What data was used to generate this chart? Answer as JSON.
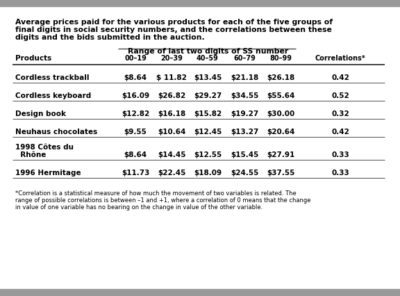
{
  "title_line1": "Average prices paid for the various products for each of the five groups of",
  "title_line2": "final digits in social security numbers, and the correlations between these",
  "title_line3": "digits and the bids submitted in the auction.",
  "range_header": "Range of last two digits of SS number",
  "col_headers": [
    "Products",
    "00–19",
    "20–39",
    "40–59",
    "60–79",
    "80–99",
    "Correlations*"
  ],
  "rows": [
    [
      "Cordless trackball",
      "$8.64",
      "$ 11.82",
      "$13.45",
      "$21.18",
      "$26.18",
      "0.42"
    ],
    [
      "Cordless keyboard",
      "$16.09",
      "$26.82",
      "$29.27",
      "$34.55",
      "$55.64",
      "0.52"
    ],
    [
      "Design book",
      "$12.82",
      "$16.18",
      "$15.82",
      "$19.27",
      "$30.00",
      "0.32"
    ],
    [
      "Neuhaus chocolates",
      "$9.55",
      "$10.64",
      "$12.45",
      "$13.27",
      "$20.64",
      "0.42"
    ],
    [
      "1998 Côtes du",
      "",
      "",
      "",
      "",
      "",
      ""
    ],
    [
      "  Rhône",
      "$8.64",
      "$14.45",
      "$12.55",
      "$15.45",
      "$27.91",
      "0.33"
    ],
    [
      "1996 Hermitage",
      "$11.73",
      "$22.45",
      "$18.09",
      "$24.55",
      "$37.55",
      "0.33"
    ]
  ],
  "footnote_line1": "*Correlation is a statistical measure of how much the movement of two variables is related. The",
  "footnote_line2": "range of possible correlations is between –1 and +1, where a correlation of 0 means that the change",
  "footnote_line3": "in value of one variable has no bearing on the change in value of the other variable.",
  "bg_color": "#ffffff",
  "gray_bar_color": "#999999",
  "line_color": "#333333",
  "text_color": "#000000"
}
